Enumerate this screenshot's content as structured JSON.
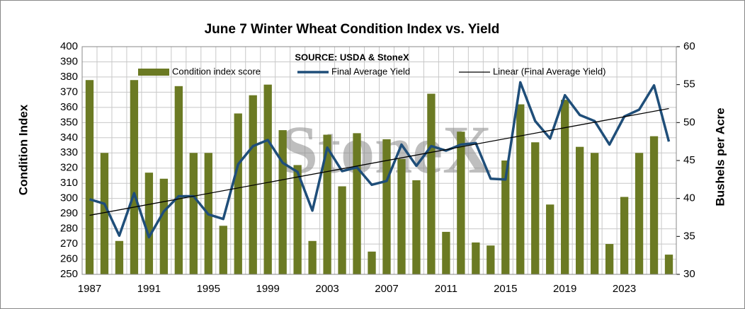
{
  "chart_data": {
    "type": "bar_line",
    "title": "June 7 Winter Wheat Condition Index vs. Yield",
    "annotation": "SOURCE: USDA & StoneX",
    "watermark": "StoneX",
    "y_label": "Condition Index",
    "y2_label": "Bushels per Acre",
    "categories": [
      "1987",
      null,
      null,
      null,
      "1991",
      null,
      null,
      null,
      "1995",
      null,
      null,
      null,
      "1999",
      null,
      null,
      null,
      "2003",
      null,
      null,
      null,
      "2007",
      null,
      null,
      null,
      "2011",
      null,
      null,
      null,
      "2015",
      null,
      null,
      null,
      "2019",
      null,
      null,
      null,
      "2023",
      null,
      null,
      null
    ],
    "series": [
      {
        "name": "Condition index score",
        "type": "bar",
        "color": "#6b7a23",
        "values": [
          378,
          330,
          272,
          378,
          317,
          313,
          374,
          330,
          330,
          282,
          356,
          368,
          375,
          345,
          322,
          272,
          342,
          308,
          343,
          265,
          339,
          326,
          312,
          369,
          278,
          344,
          271,
          269,
          325,
          362,
          337,
          296,
          365,
          334,
          330,
          270,
          301,
          330,
          341,
          263
        ]
      },
      {
        "name": "Final Average Yield",
        "type": "line",
        "axis": "y2",
        "color": "#1f4e79",
        "values": [
          39.9,
          39.3,
          35.1,
          40.7,
          34.9,
          38.3,
          40.3,
          40.3,
          37.9,
          37.3,
          44.5,
          46.9,
          47.7,
          44.7,
          43.5,
          38.4,
          46.7,
          43.6,
          44.1,
          41.8,
          42.3,
          47.1,
          44.3,
          46.9,
          46.3,
          47.1,
          47.3,
          42.6,
          42.5,
          55.3,
          50.2,
          47.9,
          53.6,
          51.0,
          50.2,
          47.1,
          50.8,
          51.7,
          54.9,
          47.5
        ]
      },
      {
        "name": "Linear (Final Average Yield)",
        "type": "trendline",
        "axis": "y2",
        "color": "#000000"
      }
    ],
    "ylim": [
      250,
      400
    ],
    "yticks": [
      250,
      260,
      270,
      280,
      290,
      300,
      310,
      320,
      330,
      340,
      350,
      360,
      370,
      380,
      390,
      400
    ],
    "y2lim": [
      30,
      60
    ],
    "y2ticks": [
      30,
      35,
      40,
      45,
      50,
      55,
      60
    ],
    "grid": true
  }
}
